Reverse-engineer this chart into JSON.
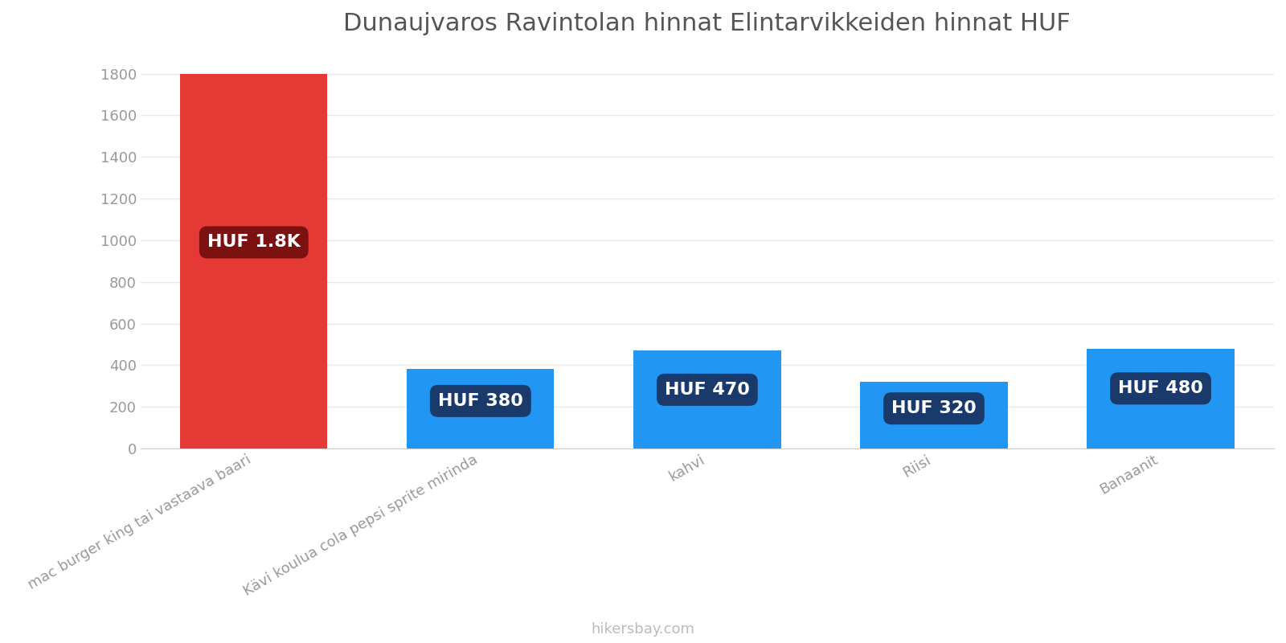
{
  "title": "Dunaujvaros Ravintolan hinnat Elintarvikkeiden hinnat HUF",
  "categories": [
    "mac burger king tai vastaava baari",
    "Kävi koulua cola pepsi sprite mirinda",
    "kahvi",
    "Riisi",
    "Banaanit"
  ],
  "values": [
    1800,
    380,
    470,
    320,
    480
  ],
  "bar_colors": [
    "#e53935",
    "#2196f3",
    "#2196f3",
    "#2196f3",
    "#2196f3"
  ],
  "label_texts": [
    "HUF 1.8K",
    "HUF 380",
    "HUF 470",
    "HUF 320",
    "HUF 480"
  ],
  "label_bg_colors": [
    "#7b1111",
    "#1a3a6b",
    "#1a3a6b",
    "#1a3a6b",
    "#1a3a6b"
  ],
  "ylim": [
    0,
    1900
  ],
  "yticks": [
    0,
    200,
    400,
    600,
    800,
    1000,
    1200,
    1400,
    1600,
    1800
  ],
  "title_fontsize": 22,
  "tick_label_fontsize": 13,
  "watermark": "hikersbay.com",
  "background_color": "#ffffff",
  "grid_color": "#e8e8e8",
  "label_fontsize": 16,
  "bar_width": 0.65
}
